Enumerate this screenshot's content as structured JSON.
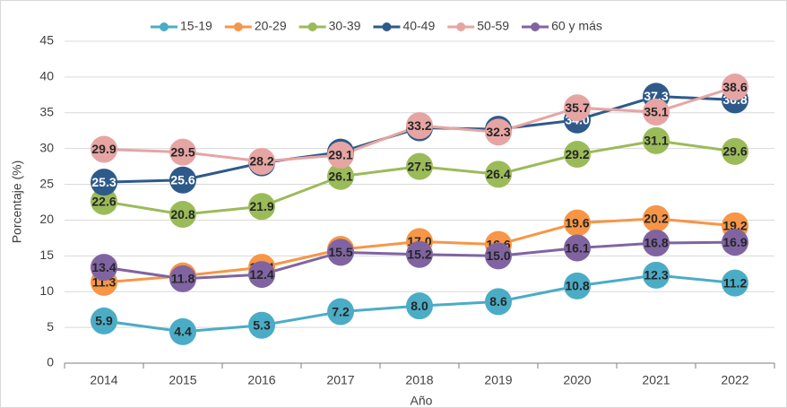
{
  "chart_data": {
    "type": "line",
    "xlabel": "Año",
    "ylabel": "Porcentaje (%)",
    "categories": [
      "2014",
      "2015",
      "2016",
      "2017",
      "2018",
      "2019",
      "2020",
      "2021",
      "2022"
    ],
    "series": [
      {
        "name": "15-19",
        "color": "#4bacc6",
        "values": [
          5.9,
          4.4,
          5.3,
          7.2,
          8.0,
          8.6,
          10.8,
          12.3,
          11.2
        ],
        "value_labels": [
          "5.9",
          "4.4",
          "5.3",
          "7.2",
          "8.0",
          "8.6",
          "10.8",
          "12.3",
          "11.2"
        ]
      },
      {
        "name": "20-29",
        "color": "#f79646",
        "values": [
          11.3,
          12.2,
          13.4,
          15.9,
          17.0,
          16.6,
          19.6,
          20.2,
          19.2
        ],
        "value_labels": [
          "11.3",
          "12.2",
          "13.4",
          "15.9",
          "17.0",
          "16.6",
          "19.6",
          "20.2",
          "19.2"
        ]
      },
      {
        "name": "30-39",
        "color": "#9bbb59",
        "values": [
          22.6,
          20.8,
          21.9,
          26.1,
          27.5,
          26.4,
          29.2,
          31.1,
          29.6
        ],
        "value_labels": [
          "22.6",
          "20.8",
          "21.9",
          "26.1",
          "27.5",
          "26.4",
          "29.2",
          "31.1",
          "29.6"
        ]
      },
      {
        "name": "40-49",
        "color": "#2e5a8a",
        "values": [
          25.3,
          25.6,
          28.0,
          29.5,
          32.9,
          32.7,
          34.0,
          37.3,
          36.8
        ],
        "value_labels": [
          "25.3",
          "25.6",
          "28.0",
          "29.5",
          "32.9",
          "32.7",
          "34.0",
          "37.3",
          "36.8"
        ]
      },
      {
        "name": "50-59",
        "color": "#e6a5a3",
        "values": [
          29.9,
          29.5,
          28.2,
          29.1,
          33.2,
          32.3,
          35.7,
          35.1,
          38.6
        ],
        "value_labels": [
          "29.9",
          "29.5",
          "28.2",
          "29.1",
          "33.2",
          "32.3",
          "35.7",
          "35.1",
          "38.6"
        ]
      },
      {
        "name": "60 y más",
        "color": "#8064a2",
        "values": [
          13.4,
          11.8,
          12.4,
          15.5,
          15.2,
          15.0,
          16.1,
          16.8,
          16.9
        ],
        "value_labels": [
          "13.4",
          "11.8",
          "12.4",
          "15.5",
          "15.2",
          "15.0",
          "16.1",
          "16.8",
          "16.9"
        ]
      }
    ],
    "ylim": [
      0,
      45
    ],
    "yticks": [
      0,
      5,
      10,
      15,
      20,
      25,
      30,
      35,
      40,
      45
    ],
    "grid": true,
    "legend": "top"
  }
}
